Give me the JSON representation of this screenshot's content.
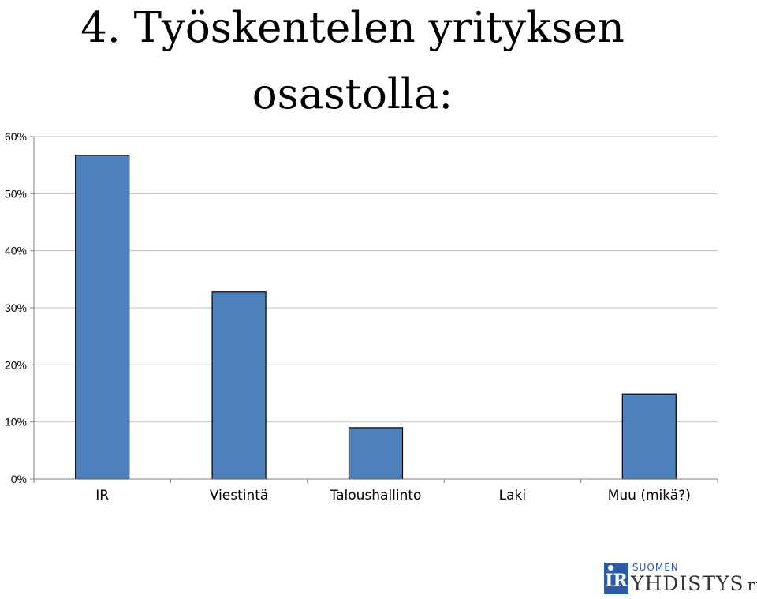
{
  "chart_data": {
    "type": "bar",
    "title_line1": "4. Työskentelen yrityksen",
    "title_line2": "osastolla:",
    "categories": [
      "IR",
      "Viestintä",
      "Taloushallinto",
      "Laki",
      "Muu (mikä?)"
    ],
    "values": [
      56.7,
      32.8,
      9.0,
      0,
      14.9
    ],
    "ylim": [
      0,
      60
    ],
    "yticks": [
      0,
      10,
      20,
      30,
      40,
      50,
      60
    ],
    "ytick_labels": [
      "0%",
      "10%",
      "20%",
      "30%",
      "40%",
      "50%",
      "60%"
    ],
    "grid": true,
    "bar_color": "#4f81bd",
    "bar_edge_color": "#000000",
    "grid_color": "#c0c0c0"
  },
  "logo": {
    "mark_text": "IR",
    "top_text": "SUOMEN",
    "main_text": "YHDISTYS",
    "suffix_text": "ry",
    "color": "#2a5aa8"
  }
}
